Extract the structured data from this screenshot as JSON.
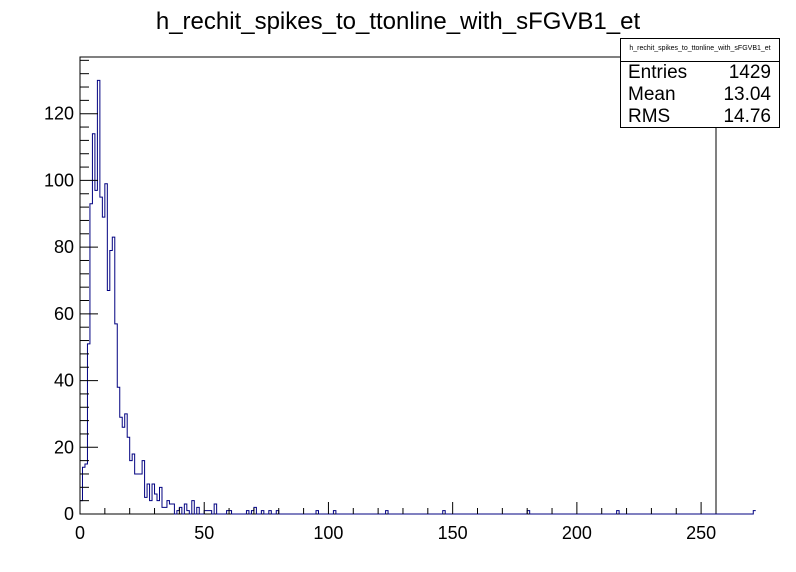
{
  "chart_data": {
    "type": "bar",
    "title": "h_rechit_spikes_to_ttonline_with_sFGVB1_et",
    "xlabel": "",
    "ylabel": "",
    "xlim": [
      0,
      256
    ],
    "ylim": [
      0,
      137
    ],
    "bin_width": 1,
    "x_ticks": [
      0,
      50,
      100,
      150,
      200,
      250
    ],
    "y_ticks": [
      0,
      20,
      40,
      60,
      80,
      100,
      120
    ],
    "line_color": "#000080",
    "grid": false,
    "values": [
      4,
      14,
      15,
      51,
      93,
      114,
      97,
      130,
      95,
      89,
      99,
      67,
      79,
      83,
      57,
      38,
      29,
      26,
      30,
      23,
      16,
      18,
      12,
      12,
      12,
      16,
      5,
      9,
      4,
      9,
      6,
      4,
      8,
      2,
      2,
      4,
      3,
      3,
      0,
      1,
      2,
      0,
      3,
      1,
      0,
      4,
      0,
      2,
      0,
      0,
      1,
      1,
      1,
      0,
      3,
      0,
      0,
      0,
      0,
      1,
      1,
      0,
      0,
      0,
      0,
      0,
      0,
      1,
      0,
      1,
      2,
      0,
      0,
      1,
      0,
      0,
      1,
      0,
      0,
      1,
      0,
      0,
      0,
      0,
      0,
      0,
      0,
      0,
      0,
      0,
      0,
      0,
      0,
      0,
      0,
      1,
      0,
      0,
      0,
      0,
      0,
      0,
      1,
      0,
      0,
      0,
      0,
      0,
      0,
      0,
      0,
      0,
      0,
      0,
      0,
      0,
      0,
      0,
      0,
      0,
      0,
      0,
      0,
      1,
      0,
      0,
      0,
      0,
      0,
      0,
      0,
      0,
      0,
      0,
      0,
      0,
      0,
      0,
      0,
      0,
      0,
      0,
      0,
      0,
      0,
      0,
      1,
      0,
      0,
      0,
      0,
      0,
      0,
      0,
      0,
      0,
      0,
      0,
      0,
      0,
      0,
      0,
      0,
      0,
      0,
      0,
      0,
      0,
      0,
      0,
      0,
      0,
      0,
      0,
      0,
      0,
      0,
      0,
      0,
      0,
      1,
      0,
      0,
      0,
      0,
      0,
      0,
      0,
      0,
      0,
      0,
      0,
      0,
      0,
      0,
      0,
      0,
      0,
      0,
      0,
      0,
      0,
      0,
      0,
      0,
      0,
      0,
      0,
      0,
      0,
      0,
      0,
      0,
      0,
      0,
      0,
      1,
      0,
      0,
      0,
      0,
      0,
      0,
      0,
      0,
      0,
      0,
      0,
      0,
      0,
      0,
      0,
      0,
      0,
      0,
      0,
      0,
      0,
      0,
      0,
      0,
      0,
      0,
      0,
      0,
      0,
      0,
      0,
      0,
      0,
      0,
      0,
      0,
      0,
      0,
      0,
      0,
      0,
      0,
      0,
      0,
      0,
      0,
      0,
      0,
      0,
      0,
      0,
      0,
      0,
      0,
      1
    ]
  },
  "stats": {
    "header": "h_rechit_spikes_to_ttonline_with_sFGVB1_et",
    "rows": [
      {
        "label": "Entries",
        "value": "1429"
      },
      {
        "label": "Mean",
        "value": "13.04"
      },
      {
        "label": "RMS",
        "value": "14.76"
      }
    ]
  }
}
